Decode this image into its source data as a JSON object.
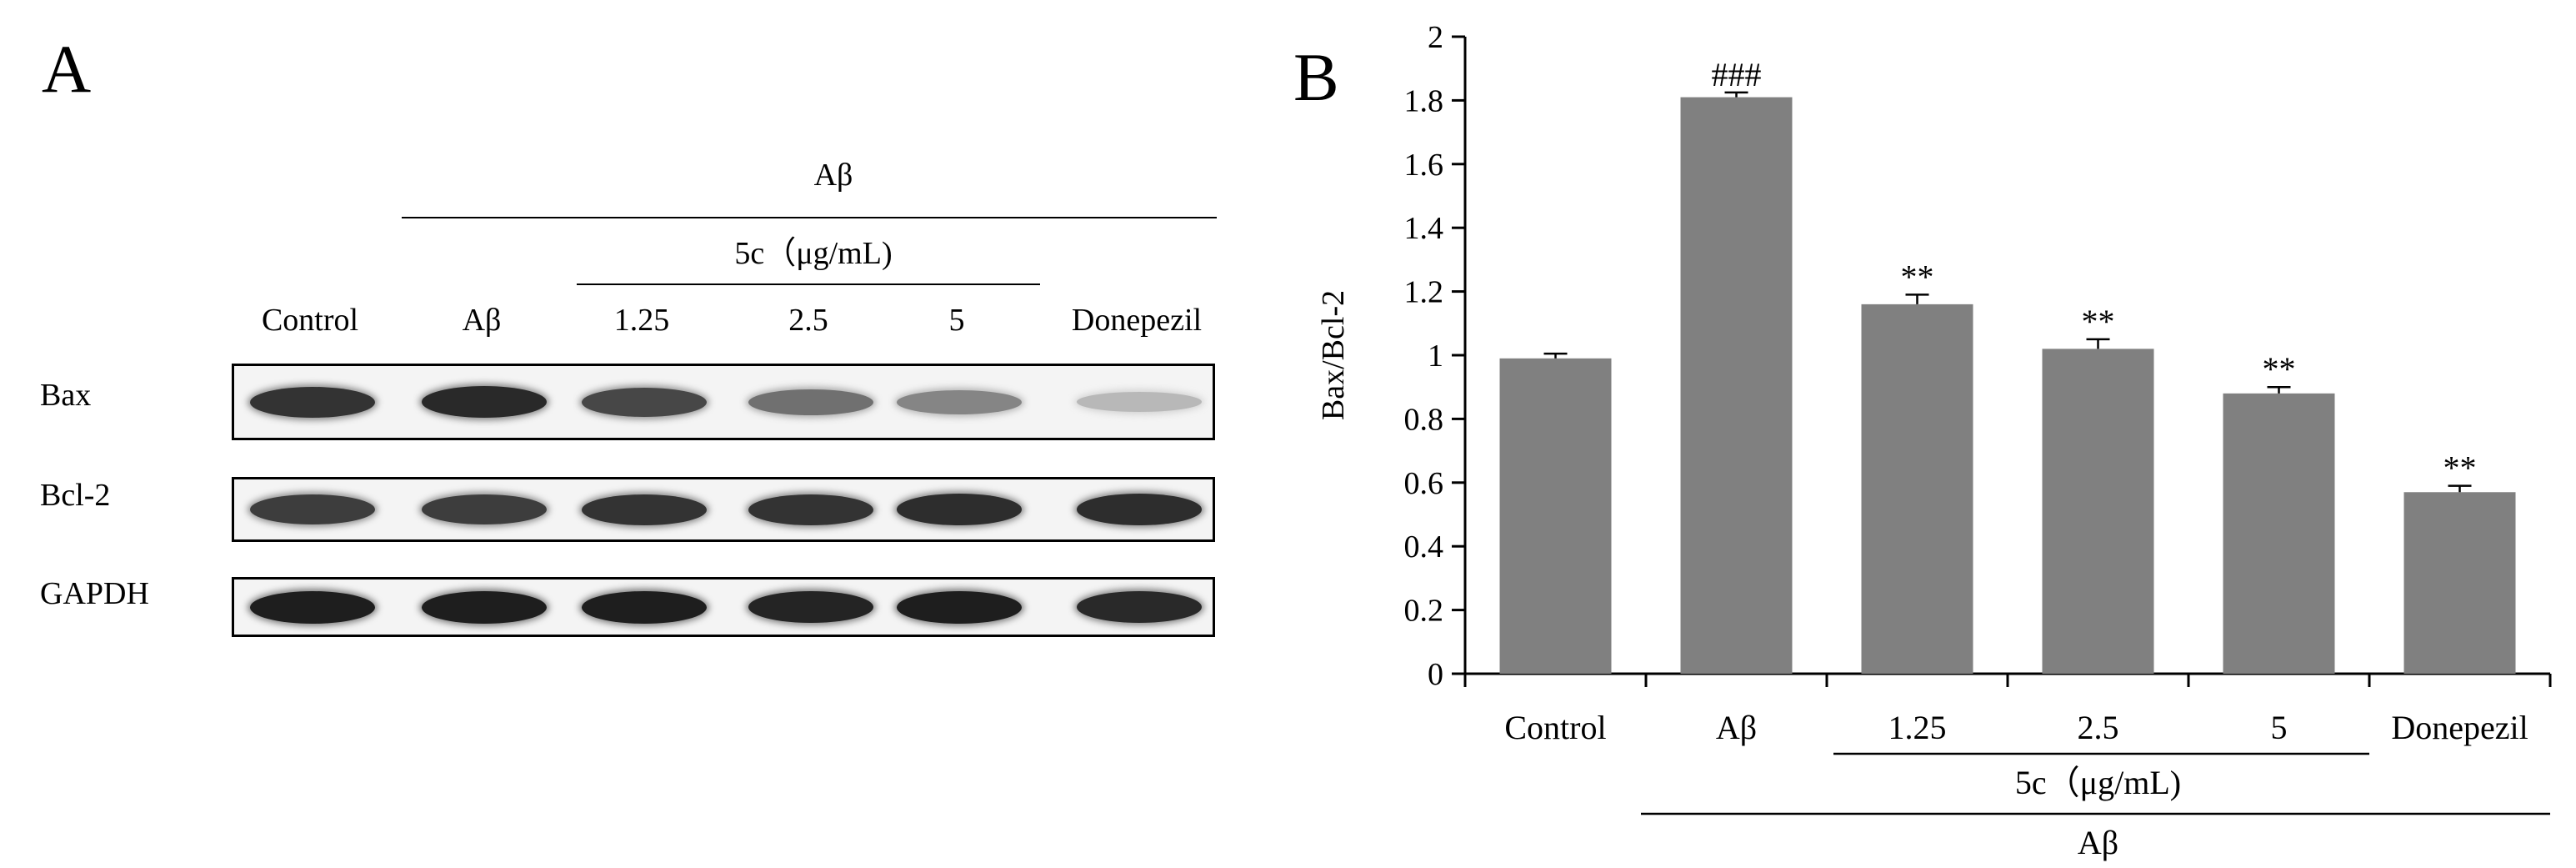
{
  "panel_a": {
    "label": "A",
    "treatment_group": "Aβ",
    "dose_group": "5c（μg/mL)",
    "lanes": [
      "Control",
      "Aβ",
      "1.25",
      "2.5",
      "5",
      "Donepezil"
    ],
    "rows": [
      {
        "label": "Bax",
        "intensity": [
          0.85,
          0.9,
          0.75,
          0.55,
          0.45,
          0.2
        ]
      },
      {
        "label": "Bcl-2",
        "intensity": [
          0.8,
          0.8,
          0.85,
          0.85,
          0.88,
          0.88
        ]
      },
      {
        "label": "GAPDH",
        "intensity": [
          0.95,
          0.95,
          0.95,
          0.92,
          0.95,
          0.9
        ]
      }
    ]
  },
  "chart_data": {
    "type": "bar",
    "panel_label": "B",
    "categories": [
      "Control",
      "Aβ",
      "1.25",
      "2.5",
      "5",
      "Donepezil"
    ],
    "values": [
      0.99,
      1.81,
      1.16,
      1.02,
      0.88,
      0.57
    ],
    "errors": [
      0.015,
      0.015,
      0.03,
      0.03,
      0.02,
      0.02
    ],
    "annotations": [
      "",
      "###",
      "**",
      "**",
      "**",
      "**"
    ],
    "ylabel": "Bax/Bcl-2",
    "xlabel": "",
    "ylim": [
      0,
      2
    ],
    "yticks": [
      "0",
      "0.2",
      "0.4",
      "0.6",
      "0.8",
      "1",
      "1.2",
      "1.4",
      "1.6",
      "1.8",
      "2"
    ],
    "dose_group": "5c（μg/mL)",
    "treatment_group": "Aβ",
    "bar_color": "#808080",
    "grid": false
  }
}
